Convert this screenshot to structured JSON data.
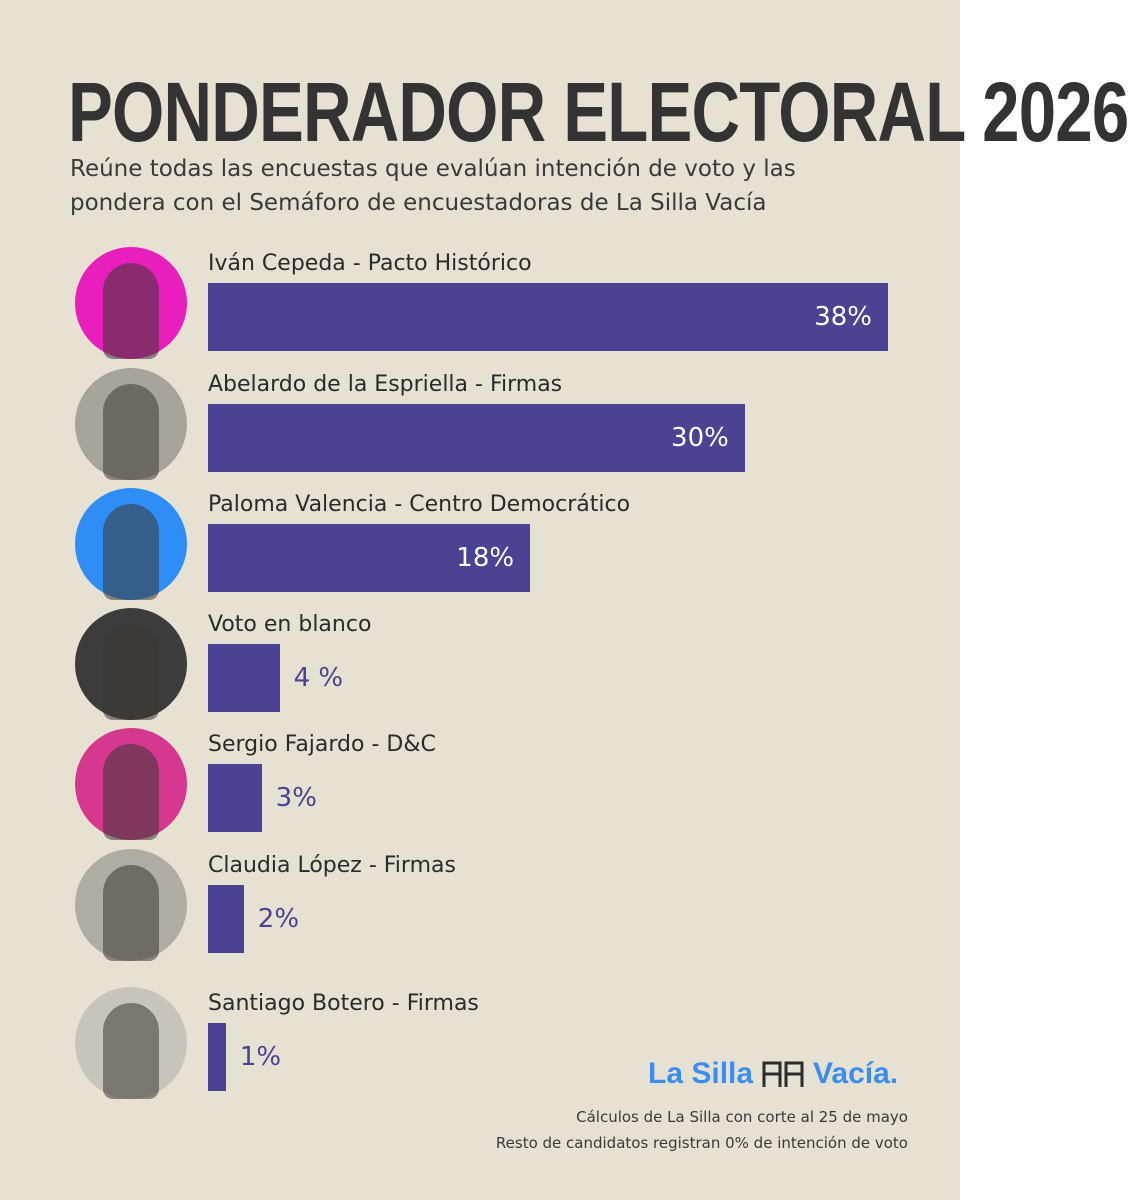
{
  "chart_data": {
    "type": "hbar",
    "title": "PONDERADOR ELECTORAL 2026",
    "subtitle": "Reúne todas las encuestas que evalúan intención de voto y las pondera con el Semáforo de encuestadoras de La Silla Vacía",
    "categories": [
      "Iván Cepeda - Pacto Histórico",
      "Abelardo de la Espriella - Firmas",
      "Paloma Valencia - Centro Democrático",
      "Voto en blanco",
      "Sergio Fajardo - D&C",
      "Claudia López - Firmas",
      "Santiago Botero - Firmas"
    ],
    "values": [
      38,
      30,
      18,
      4,
      3,
      2,
      1
    ],
    "value_labels": [
      "38%",
      "30%",
      "18%",
      "4 %",
      "3%",
      "2%",
      "1%"
    ],
    "color": "#4a4292",
    "notes": [
      "Cálculos de La Silla con corte al 25 de mayo",
      "Resto de candidatos registran 0% de intención de voto"
    ],
    "logo": [
      "La Silla",
      "Vacía."
    ]
  }
}
